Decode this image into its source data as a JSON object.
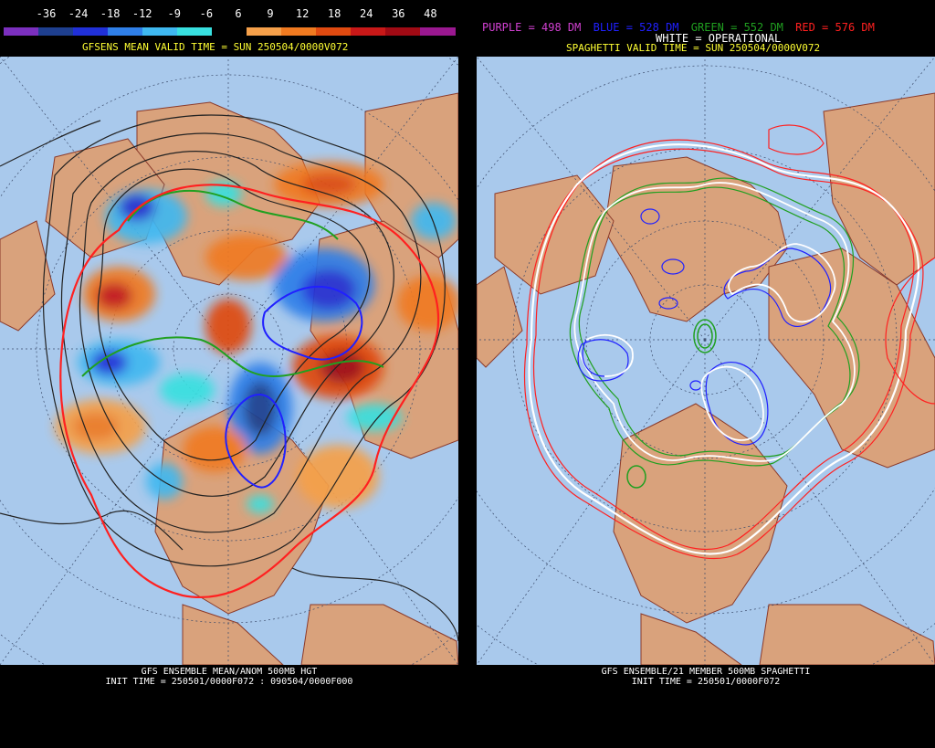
{
  "left": {
    "scale_labels": [
      "-36",
      "-24",
      "-18",
      "-12",
      "-9",
      "-6",
      "6",
      "9",
      "12",
      "18",
      "24",
      "36",
      "48"
    ],
    "scale_colors": [
      "#7b2fbe",
      "#1e3f8f",
      "#2030d8",
      "#2f7fe8",
      "#3fb8f0",
      "#38e0e0",
      "#000000",
      "#f5a04a",
      "#f07a20",
      "#e04a10",
      "#c81818",
      "#a00a14",
      "#9a1890"
    ],
    "header": "GFSENS MEAN VALID TIME = SUN 250504/0000V072",
    "footer_line1": "GFS ENSEMBLE MEAN/ANOM 500MB HGT",
    "footer_line2": "INIT TIME = 250501/0000F072 : 090504/0000F000"
  },
  "right": {
    "legend_purple": "PURPLE = 498 DM",
    "legend_blue": "BLUE = 528 DM",
    "legend_green": "GREEN = 552 DM",
    "legend_red": "RED = 576 DM",
    "legend_white": "WHITE = OPERATIONAL",
    "header": "SPAGHETTI VALID TIME = SUN 250504/0000V072",
    "footer_line1": "GFS ENSEMBLE/21 MEMBER 500MB SPAGHETTI",
    "footer_line2": "INIT TIME = 250501/0000F072",
    "colors": {
      "purple": "#d040d0",
      "blue": "#2020ff",
      "green": "#20a020",
      "red": "#ff2020",
      "white": "#ffffff"
    }
  },
  "map_colors": {
    "ocean": "#a9c9ec",
    "land": "#d9a27c",
    "border": "#8b3a2a"
  }
}
